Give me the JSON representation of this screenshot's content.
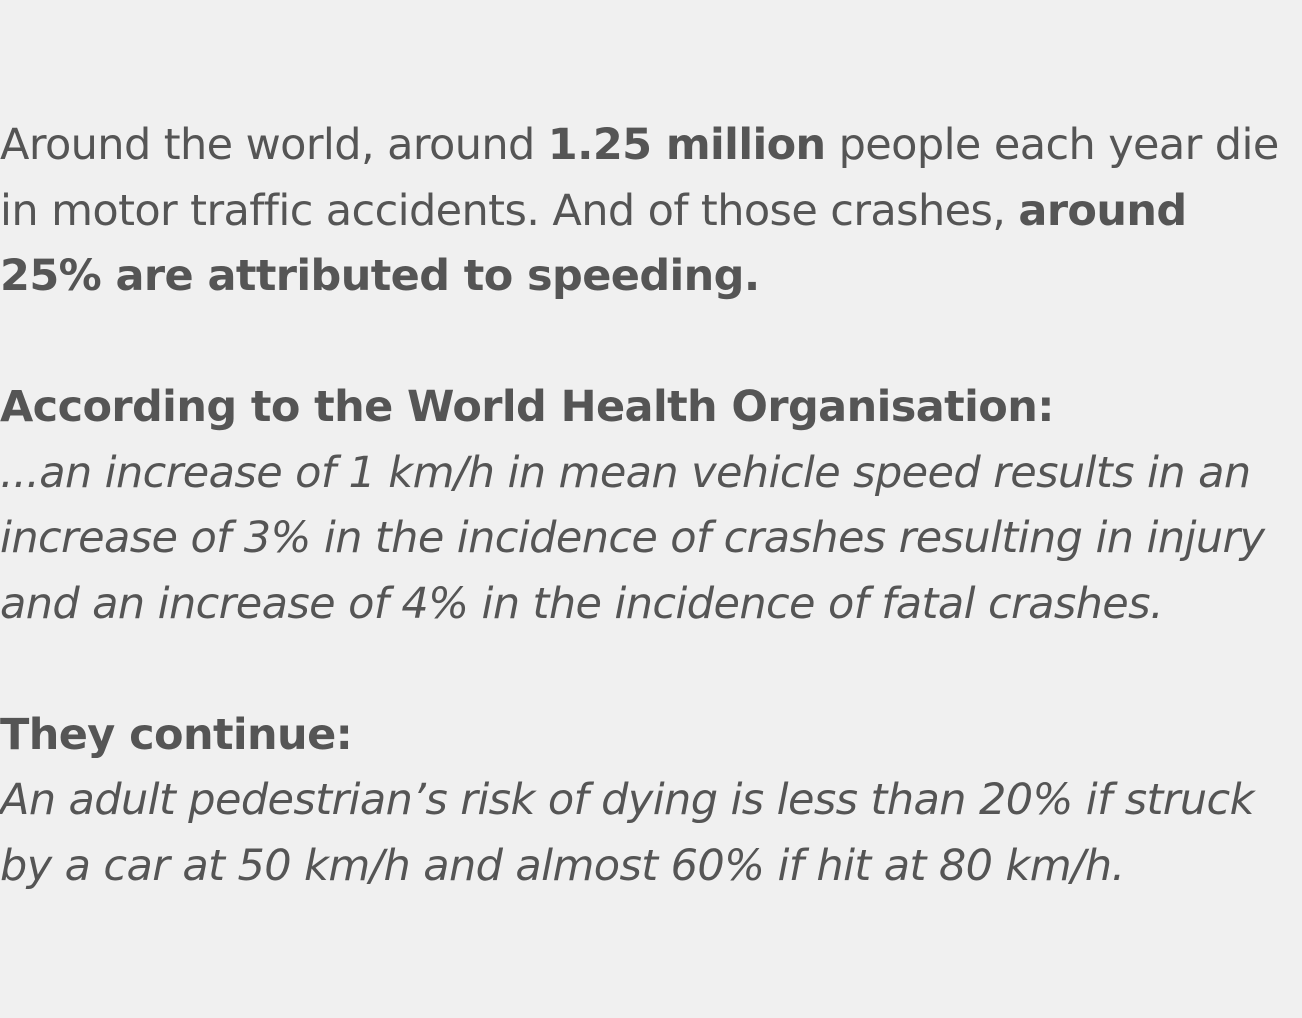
{
  "intro": {
    "part1": "Around the world, around ",
    "bold1": "1.25 million",
    "part2": " people each year die in motor traffic accidents. And of those crashes, ",
    "bold2": "around 25% are attributed to speeding."
  },
  "who": {
    "heading": "According to the World Health Organisation:",
    "quote": "...an increase of 1 km/h in mean vehicle speed results in an increase of 3% in the incidence of crashes resulting in injury and an increase of 4% in the incidence of fatal crashes."
  },
  "continue": {
    "heading": "They continue:",
    "quote": "An adult pedestrian’s risk of dying is less than 20% if struck by a car at 50 km/h and almost 60% if hit at 80 km/h."
  }
}
